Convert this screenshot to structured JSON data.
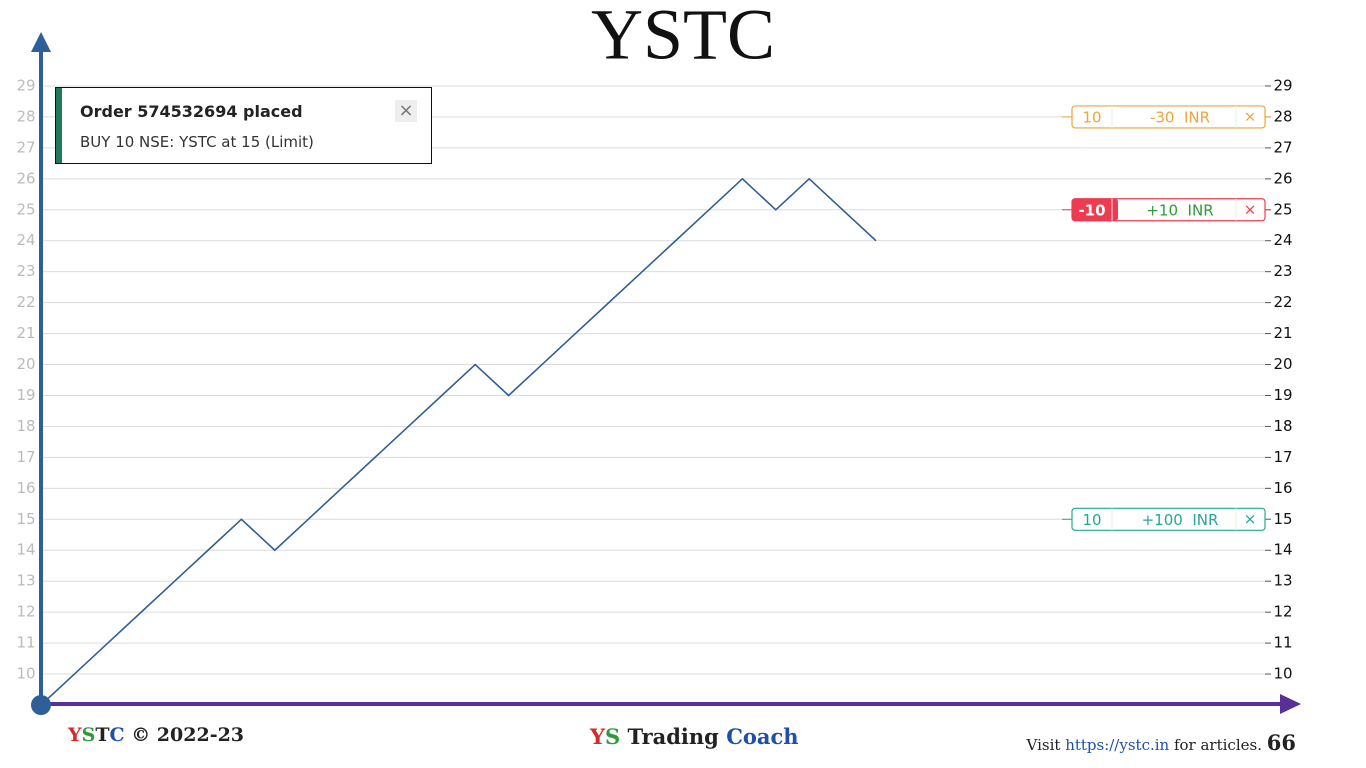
{
  "chart_data": {
    "type": "line",
    "title": "YSTC",
    "values": [
      9,
      10,
      11,
      12,
      13,
      14,
      15,
      14,
      15,
      16,
      17,
      18,
      19,
      20,
      19,
      20,
      21,
      22,
      23,
      24,
      25,
      26,
      25,
      26,
      25,
      24
    ],
    "color": "#2f5f98",
    "ylim": [
      9,
      29.5
    ],
    "yticks": [
      10,
      11,
      12,
      13,
      14,
      15,
      16,
      17,
      18,
      19,
      20,
      21,
      22,
      23,
      24,
      25,
      26,
      27,
      28,
      29
    ],
    "grid": true,
    "orders": [
      {
        "price": 28,
        "qty": "10",
        "pnl": "-30  INR",
        "close": "×",
        "color": "#f0a43a",
        "qty_filled": false
      },
      {
        "price": 25,
        "qty": "-10",
        "pnl": "+10  INR",
        "close": "×",
        "color": "#ef3b4f",
        "qty_filled": true
      },
      {
        "price": 15,
        "qty": "10",
        "pnl": "+100  INR",
        "close": "×",
        "color": "#26a69a",
        "qty_filled": false
      }
    ]
  },
  "toast": {
    "title": "Order 574532694 placed",
    "message": "BUY 10 NSE: YSTC  at 15  (Limit)",
    "close": "×"
  },
  "footer": {
    "left": [
      "Y",
      "S",
      "T",
      "C",
      " © 2022-23"
    ],
    "center": [
      "Y",
      "S",
      " Trading ",
      "Coach"
    ],
    "right": {
      "visit": "Visit ",
      "url": "https://ystc.in",
      "after": " for articles.",
      "page": "66"
    }
  }
}
